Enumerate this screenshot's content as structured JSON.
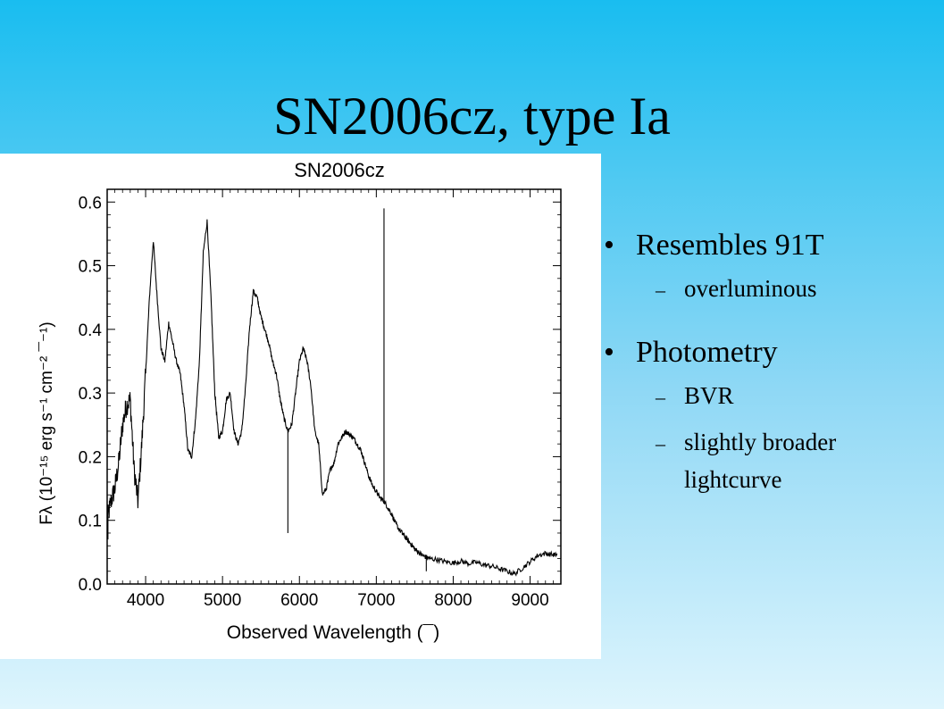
{
  "slide": {
    "title": "SN2006cz, type Ia",
    "bullets": [
      {
        "text": "Resembles 91T",
        "subs": [
          "overluminous"
        ]
      },
      {
        "text": "Photometry",
        "subs": [
          "BVR",
          "slightly broader lightcurve"
        ]
      }
    ]
  },
  "chart_data": {
    "type": "line",
    "title": "SN2006cz",
    "xlabel": "Observed Wavelength (¯)",
    "ylabel": "Fλ (10⁻¹⁵ erg s⁻¹ cm⁻² ¯⁻¹)",
    "xlim": [
      3500,
      9400
    ],
    "ylim": [
      0.0,
      0.62
    ],
    "xticks": [
      4000,
      5000,
      6000,
      7000,
      8000,
      9000
    ],
    "yticks": [
      0.0,
      0.1,
      0.2,
      0.3,
      0.4,
      0.5,
      0.6
    ],
    "ytick_labels": [
      "0.0",
      "0.1",
      "0.2",
      "0.3",
      "0.4",
      "0.5",
      "0.6"
    ],
    "grid": false,
    "line_color": "#000000",
    "series": [
      {
        "x": [
          3500,
          3550,
          3600,
          3650,
          3700,
          3750,
          3800,
          3850,
          3900,
          3950,
          4000,
          4050,
          4100,
          4150,
          4200,
          4250,
          4300,
          4350,
          4400,
          4450,
          4500,
          4550,
          4600,
          4650,
          4700,
          4750,
          4800,
          4850,
          4900,
          4950,
          5000,
          5050,
          5100,
          5150,
          5200,
          5250,
          5300,
          5350,
          5400,
          5450,
          5500,
          5550,
          5600,
          5650,
          5700,
          5750,
          5800,
          5850,
          5900,
          5950,
          6000,
          6050,
          6100,
          6150,
          6200,
          6250,
          6300,
          6350,
          6400,
          6450,
          6500,
          6550,
          6600,
          6650,
          6700,
          6750,
          6800,
          6850,
          6900,
          6950,
          7000,
          7050,
          7100,
          7150,
          7200,
          7250,
          7300,
          7350,
          7400,
          7450,
          7500,
          7550,
          7600,
          7650,
          7700,
          7800,
          7900,
          8000,
          8100,
          8200,
          8300,
          8400,
          8500,
          8600,
          8700,
          8800,
          8900,
          9000,
          9100,
          9200,
          9300,
          9350
        ],
        "y": [
          0.1,
          0.13,
          0.15,
          0.19,
          0.25,
          0.28,
          0.29,
          0.18,
          0.13,
          0.22,
          0.33,
          0.45,
          0.54,
          0.45,
          0.37,
          0.35,
          0.41,
          0.38,
          0.35,
          0.33,
          0.28,
          0.21,
          0.2,
          0.26,
          0.35,
          0.52,
          0.57,
          0.45,
          0.3,
          0.23,
          0.24,
          0.29,
          0.3,
          0.24,
          0.22,
          0.24,
          0.31,
          0.4,
          0.46,
          0.45,
          0.42,
          0.4,
          0.38,
          0.35,
          0.33,
          0.29,
          0.26,
          0.24,
          0.25,
          0.3,
          0.35,
          0.37,
          0.35,
          0.31,
          0.24,
          0.22,
          0.14,
          0.15,
          0.18,
          0.19,
          0.22,
          0.23,
          0.24,
          0.235,
          0.23,
          0.22,
          0.21,
          0.19,
          0.17,
          0.155,
          0.145,
          0.135,
          0.13,
          0.12,
          0.11,
          0.095,
          0.085,
          0.078,
          0.07,
          0.063,
          0.055,
          0.05,
          0.045,
          0.042,
          0.04,
          0.038,
          0.035,
          0.033,
          0.036,
          0.032,
          0.034,
          0.03,
          0.028,
          0.024,
          0.02,
          0.016,
          0.025,
          0.035,
          0.045,
          0.048,
          0.046,
          0.045
        ]
      }
    ],
    "spikes": [
      {
        "x": 3510,
        "y": 0.07
      },
      {
        "x": 5850,
        "y": 0.08
      },
      {
        "x": 7100,
        "y": 0.59
      },
      {
        "x": 7650,
        "y": 0.02
      }
    ]
  }
}
